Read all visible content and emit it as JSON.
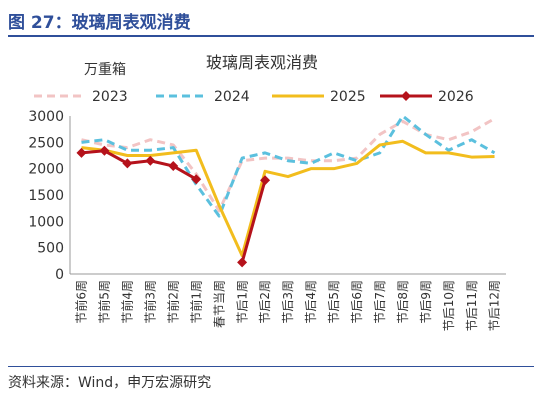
{
  "figure": {
    "title": "图 27：玻璃周表观消费",
    "source": "资料来源：Wind，申万宏源研究"
  },
  "chart_data": {
    "type": "line",
    "title": "玻璃周表观消费",
    "unit_label": "万重箱",
    "categories": [
      "节前6周",
      "节前5周",
      "节前4周",
      "节前3周",
      "节前2周",
      "节前1周",
      "春节当周",
      "节后1周",
      "节后2周",
      "节后3周",
      "节后4周",
      "节后5周",
      "节后6周",
      "节后7周",
      "节后8周",
      "节后9周",
      "节后10周",
      "节后11周",
      "节后12周"
    ],
    "ylim": [
      0,
      3000
    ],
    "yticks": [
      0,
      500,
      1000,
      1500,
      2000,
      2500,
      3000
    ],
    "grid": false,
    "legend_position": "top",
    "series": [
      {
        "name": "2023",
        "color": "#f2c4c4",
        "style": "dashed",
        "width": 3,
        "values": [
          2550,
          2450,
          2400,
          2550,
          2450,
          1900,
          1200,
          2150,
          2200,
          2200,
          2150,
          2150,
          2200,
          2650,
          2900,
          2650,
          2550,
          2700,
          2950
        ]
      },
      {
        "name": "2024",
        "color": "#5bc0de",
        "style": "dashed",
        "width": 3,
        "values": [
          2500,
          2550,
          2350,
          2350,
          2400,
          1700,
          1100,
          2200,
          2300,
          2150,
          2100,
          2300,
          2150,
          2300,
          3000,
          2650,
          2350,
          2550,
          2300
        ]
      },
      {
        "name": "2025",
        "color": "#f2bd1d",
        "style": "solid",
        "width": 3,
        "values": [
          2400,
          2350,
          2250,
          2250,
          2300,
          2350,
          1300,
          350,
          1950,
          1850,
          2000,
          2000,
          2100,
          2450,
          2520,
          2300,
          2300,
          2220,
          2230
        ]
      },
      {
        "name": "2026",
        "color": "#b5121b",
        "style": "solid",
        "width": 3,
        "marker": "diamond",
        "values": [
          2300,
          2340,
          2100,
          2150,
          2050,
          1800,
          null,
          220,
          1780,
          null,
          null,
          null,
          null,
          null,
          null,
          null,
          null,
          null,
          null
        ]
      }
    ]
  }
}
